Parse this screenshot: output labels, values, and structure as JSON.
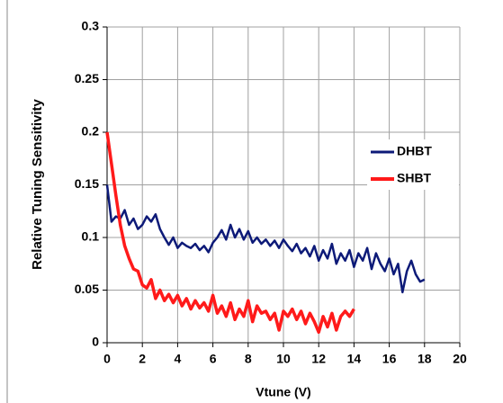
{
  "chart_data": {
    "type": "line",
    "xlabel": "Vtune (V)",
    "ylabel": "Relative Tuning  Sensitivity",
    "xlim": [
      0,
      20
    ],
    "xticks": [
      0,
      2,
      4,
      6,
      8,
      10,
      12,
      14,
      16,
      18,
      20
    ],
    "ylim": [
      0,
      0.3
    ],
    "yticks": [
      0,
      0.05,
      0.1,
      0.15,
      0.2,
      0.25,
      0.3
    ],
    "grid": true,
    "legend": "right",
    "series": [
      {
        "name": "DHBT",
        "color": "#0d1a78",
        "x": [
          0,
          0.25,
          0.5,
          0.75,
          1,
          1.25,
          1.5,
          1.75,
          2,
          2.25,
          2.5,
          2.75,
          3,
          3.25,
          3.5,
          3.75,
          4,
          4.25,
          4.5,
          4.75,
          5,
          5.25,
          5.5,
          5.75,
          6,
          6.25,
          6.5,
          6.75,
          7,
          7.25,
          7.5,
          7.75,
          8,
          8.25,
          8.5,
          8.75,
          9,
          9.25,
          9.5,
          9.75,
          10,
          10.25,
          10.5,
          10.75,
          11,
          11.25,
          11.5,
          11.75,
          12,
          12.25,
          12.5,
          12.75,
          13,
          13.25,
          13.5,
          13.75,
          14,
          14.25,
          14.5,
          14.75,
          15,
          15.25,
          15.5,
          15.75,
          16,
          16.25,
          16.5,
          16.75,
          17,
          17.25,
          17.5,
          17.75,
          18
        ],
        "values": [
          0.15,
          0.115,
          0.12,
          0.118,
          0.126,
          0.112,
          0.118,
          0.108,
          0.112,
          0.12,
          0.115,
          0.122,
          0.108,
          0.1,
          0.093,
          0.1,
          0.09,
          0.095,
          0.092,
          0.09,
          0.094,
          0.088,
          0.092,
          0.086,
          0.095,
          0.1,
          0.107,
          0.098,
          0.112,
          0.1,
          0.108,
          0.098,
          0.106,
          0.095,
          0.1,
          0.094,
          0.098,
          0.092,
          0.097,
          0.09,
          0.098,
          0.092,
          0.087,
          0.094,
          0.085,
          0.09,
          0.082,
          0.092,
          0.078,
          0.088,
          0.08,
          0.094,
          0.075,
          0.085,
          0.078,
          0.088,
          0.072,
          0.085,
          0.078,
          0.09,
          0.07,
          0.085,
          0.075,
          0.068,
          0.08,
          0.065,
          0.075,
          0.048,
          0.068,
          0.078,
          0.065,
          0.058,
          0.06
        ]
      },
      {
        "name": "SHBT",
        "color": "#ff1a1a",
        "x": [
          0,
          0.25,
          0.5,
          0.75,
          1,
          1.25,
          1.5,
          1.75,
          2,
          2.25,
          2.5,
          2.75,
          3,
          3.25,
          3.5,
          3.75,
          4,
          4.25,
          4.5,
          4.75,
          5,
          5.25,
          5.5,
          5.75,
          6,
          6.25,
          6.5,
          6.75,
          7,
          7.25,
          7.5,
          7.75,
          8,
          8.25,
          8.5,
          8.75,
          9,
          9.25,
          9.5,
          9.75,
          10,
          10.25,
          10.5,
          10.75,
          11,
          11.25,
          11.5,
          11.75,
          12,
          12.25,
          12.5,
          12.75,
          13,
          13.25,
          13.5,
          13.75,
          14
        ],
        "values": [
          0.2,
          0.17,
          0.14,
          0.112,
          0.092,
          0.08,
          0.07,
          0.068,
          0.055,
          0.052,
          0.06,
          0.042,
          0.05,
          0.04,
          0.046,
          0.038,
          0.045,
          0.035,
          0.042,
          0.032,
          0.04,
          0.033,
          0.038,
          0.03,
          0.045,
          0.028,
          0.035,
          0.025,
          0.038,
          0.022,
          0.032,
          0.025,
          0.04,
          0.02,
          0.035,
          0.028,
          0.03,
          0.022,
          0.028,
          0.012,
          0.03,
          0.025,
          0.032,
          0.022,
          0.03,
          0.018,
          0.028,
          0.02,
          0.01,
          0.025,
          0.015,
          0.028,
          0.012,
          0.025,
          0.03,
          0.025,
          0.032
        ]
      }
    ]
  }
}
